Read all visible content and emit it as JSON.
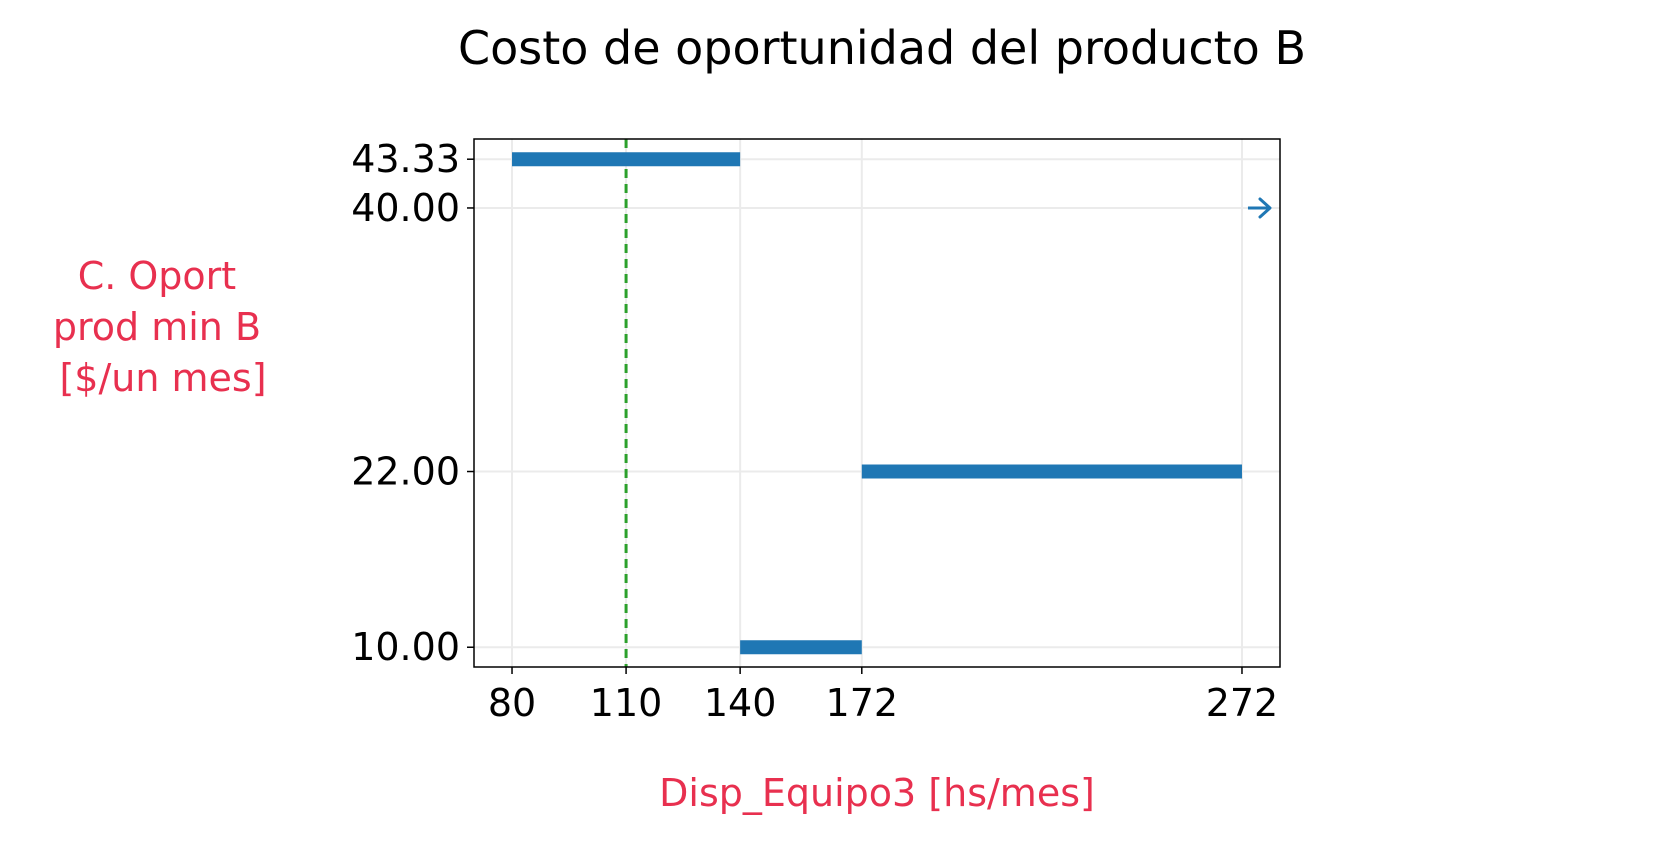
{
  "colors": {
    "series": "#1f77b4",
    "reference_line": "#2ca02c",
    "axis_label": "#e8304f",
    "grid": "#ebebeb",
    "axes": "#000000"
  },
  "chart_data": {
    "type": "line",
    "title": "Costo de oportunidad del producto B",
    "xlabel": "Disp_Equipo3 [hs/mes]",
    "ylabel_lines": [
      "C. Oport",
      "prod min B",
      "[$/un mes]"
    ],
    "xlim": [
      70,
      282
    ],
    "ylim": [
      8.65,
      44.71
    ],
    "x_ticks": [
      80,
      110,
      140,
      172,
      272
    ],
    "y_ticks": [
      10.0,
      22.0,
      40.0,
      43.33
    ],
    "x_tick_labels": [
      "80",
      "110",
      "140",
      "172",
      "272"
    ],
    "y_tick_labels": [
      "10.00",
      "22.00",
      "40.00",
      "43.33"
    ],
    "grid": true,
    "series": [
      {
        "segments": [
          {
            "x": [
              80,
              140
            ],
            "y": [
              43.33,
              43.33
            ]
          },
          {
            "x": [
              140,
              172
            ],
            "y": [
              10.0,
              10.0
            ]
          },
          {
            "x": [
              172,
              272
            ],
            "y": [
              22.0,
              22.0
            ]
          }
        ],
        "arrow": {
          "x": 272,
          "y": 40.0,
          "direction": "right"
        }
      }
    ],
    "reference_line": {
      "x": 110,
      "style": "dashed"
    }
  }
}
